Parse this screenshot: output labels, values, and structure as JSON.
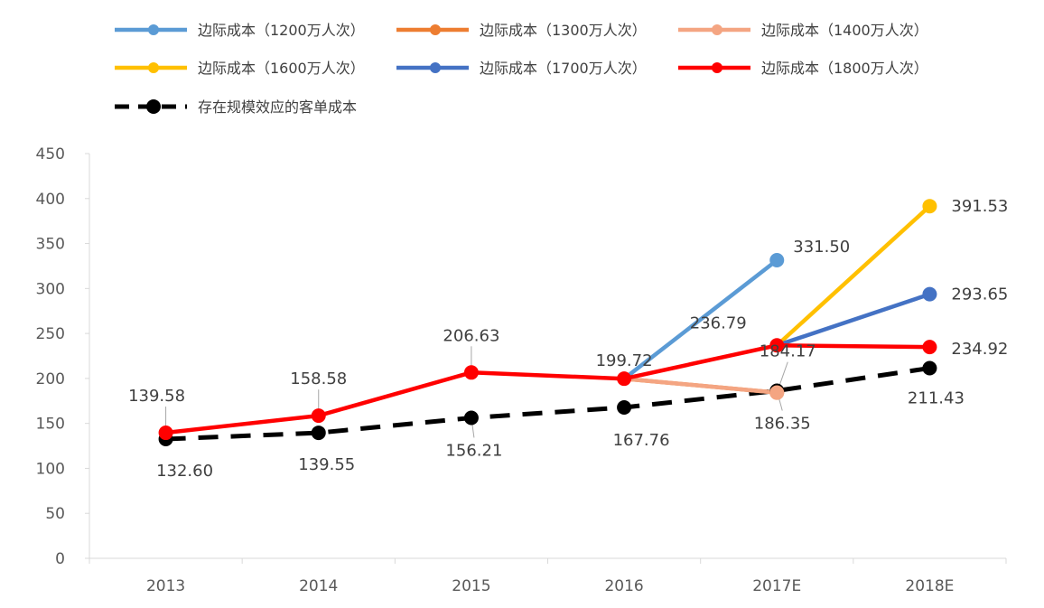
{
  "chart_data": {
    "type": "line",
    "title": "",
    "xlabel": "",
    "ylabel": "",
    "ylim": [
      0,
      450
    ],
    "yticks": [
      0,
      50,
      100,
      150,
      200,
      250,
      300,
      350,
      400,
      450
    ],
    "grid": false,
    "legend_position": "top",
    "categories": [
      "2013",
      "2014",
      "2015",
      "2016",
      "2017E",
      "2018E"
    ],
    "series": [
      {
        "name": "边际成本（1200万人次）",
        "color": "#5B9BD5",
        "dash": false,
        "values": [
          null,
          null,
          null,
          199.72,
          331.5,
          null
        ],
        "labels": [
          null,
          null,
          null,
          null,
          "331.50",
          null
        ]
      },
      {
        "name": "边际成本（1300万人次）",
        "color": "#ED7D31",
        "dash": false,
        "values": [
          null,
          null,
          null,
          199.72,
          184.17,
          null
        ],
        "labels": [
          null,
          null,
          null,
          null,
          null,
          null
        ]
      },
      {
        "name": "边际成本（1400万人次）",
        "color": "#F4A582",
        "dash": false,
        "values": [
          null,
          null,
          null,
          199.72,
          184.17,
          null
        ],
        "labels": [
          null,
          null,
          null,
          null,
          "184.17",
          null
        ]
      },
      {
        "name": "边际成本（1600万人次）",
        "color": "#FFC000",
        "dash": false,
        "values": [
          null,
          null,
          null,
          null,
          236.79,
          391.53
        ],
        "labels": [
          null,
          null,
          null,
          null,
          null,
          "391.53"
        ]
      },
      {
        "name": "边际成本（1700万人次）",
        "color": "#4472C4",
        "dash": false,
        "values": [
          null,
          null,
          null,
          null,
          236.79,
          293.65
        ],
        "labels": [
          null,
          null,
          null,
          null,
          null,
          "293.65"
        ]
      },
      {
        "name": "边际成本（1800万人次）",
        "color": "#FF0000",
        "dash": false,
        "values": [
          139.58,
          158.58,
          206.63,
          199.72,
          236.79,
          234.92
        ],
        "labels": [
          "139.58",
          "158.58",
          "206.63",
          "199.72",
          "236.79",
          "234.92"
        ]
      },
      {
        "name": "存在规模效应的客单成本",
        "color": "#000000",
        "dash": true,
        "values": [
          132.6,
          139.55,
          156.21,
          167.76,
          186.35,
          211.43
        ],
        "labels": [
          "132.60",
          "139.55",
          "156.21",
          "167.76",
          "186.35",
          "211.43"
        ]
      }
    ]
  }
}
